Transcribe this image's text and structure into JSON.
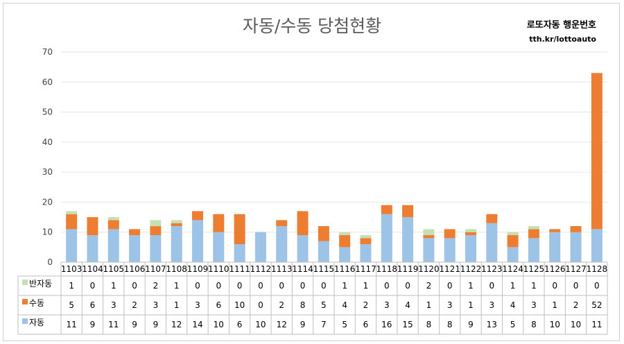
{
  "chart_data": {
    "type": "bar",
    "stacked": true,
    "title": "자동/수동 당첨현황",
    "brand_line1": "로또자동 행운번호",
    "brand_line2": "tth.kr/lottoauto",
    "categories": [
      "1103",
      "1104",
      "1105",
      "1106",
      "1107",
      "1108",
      "1109",
      "1110",
      "1111",
      "1112",
      "1113",
      "1114",
      "1115",
      "1116",
      "1117",
      "1118",
      "1119",
      "1120",
      "1121",
      "1122",
      "1123",
      "1124",
      "1125",
      "1126",
      "1127",
      "1128"
    ],
    "series": [
      {
        "name": "자동",
        "color": "#9dc3e6",
        "values": [
          11,
          9,
          11,
          9,
          9,
          12,
          14,
          10,
          6,
          10,
          12,
          9,
          7,
          5,
          6,
          16,
          15,
          8,
          8,
          9,
          13,
          5,
          8,
          10,
          10,
          11
        ]
      },
      {
        "name": "수동",
        "color": "#ed7d31",
        "values": [
          5,
          6,
          3,
          2,
          3,
          1,
          3,
          6,
          10,
          0,
          2,
          8,
          5,
          4,
          2,
          3,
          4,
          1,
          3,
          1,
          3,
          4,
          3,
          1,
          2,
          52
        ]
      },
      {
        "name": "반자동",
        "color": "#c5e0b4",
        "values": [
          1,
          0,
          1,
          0,
          2,
          1,
          0,
          0,
          0,
          0,
          0,
          0,
          0,
          1,
          1,
          0,
          0,
          2,
          0,
          1,
          0,
          1,
          1,
          0,
          0,
          0
        ]
      }
    ],
    "table_row_order": [
      "반자동",
      "수동",
      "자동"
    ],
    "ylim": [
      0,
      70
    ],
    "yticks": [
      0,
      10,
      20,
      30,
      40,
      50,
      60,
      70
    ],
    "grid": true,
    "legend": "data-table"
  }
}
